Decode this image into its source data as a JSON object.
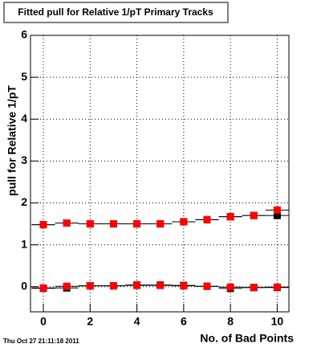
{
  "chart_data": {
    "type": "scatter",
    "title": "Fitted pull for Relative 1/pT Primary Tracks",
    "x_label": "No. of Bad Points",
    "y_label": "pull for Relative 1/pT",
    "timestamp": "Thu Oct 27 21:11:18 2011",
    "x": [
      0,
      1,
      2,
      3,
      4,
      5,
      6,
      7,
      8,
      9,
      10
    ],
    "series": [
      {
        "color": "#000000",
        "values": [
          1.48,
          1.52,
          1.5,
          1.5,
          1.5,
          1.5,
          1.55,
          1.6,
          1.67,
          1.7,
          1.7
        ]
      },
      {
        "color": "#ff0000",
        "values": [
          1.48,
          1.52,
          1.5,
          1.5,
          1.5,
          1.5,
          1.55,
          1.6,
          1.67,
          1.7,
          1.83
        ]
      },
      {
        "color": "#000000",
        "values": [
          -0.04,
          -0.03,
          0.02,
          0.02,
          0.04,
          0.04,
          0.03,
          0.01,
          -0.04,
          -0.02,
          -0.02
        ]
      },
      {
        "color": "#ff0000",
        "values": [
          -0.03,
          0.01,
          0.02,
          0.02,
          0.03,
          0.03,
          0.02,
          0.01,
          -0.01,
          -0.02,
          -0.01
        ]
      }
    ],
    "xlim": [
      -0.55,
      10.5
    ],
    "ylim": [
      -0.6,
      6
    ],
    "xticks": [
      0,
      2,
      4,
      6,
      8,
      10
    ],
    "yticks": [
      0,
      1,
      2,
      3,
      4,
      5,
      6
    ],
    "grid": true
  }
}
